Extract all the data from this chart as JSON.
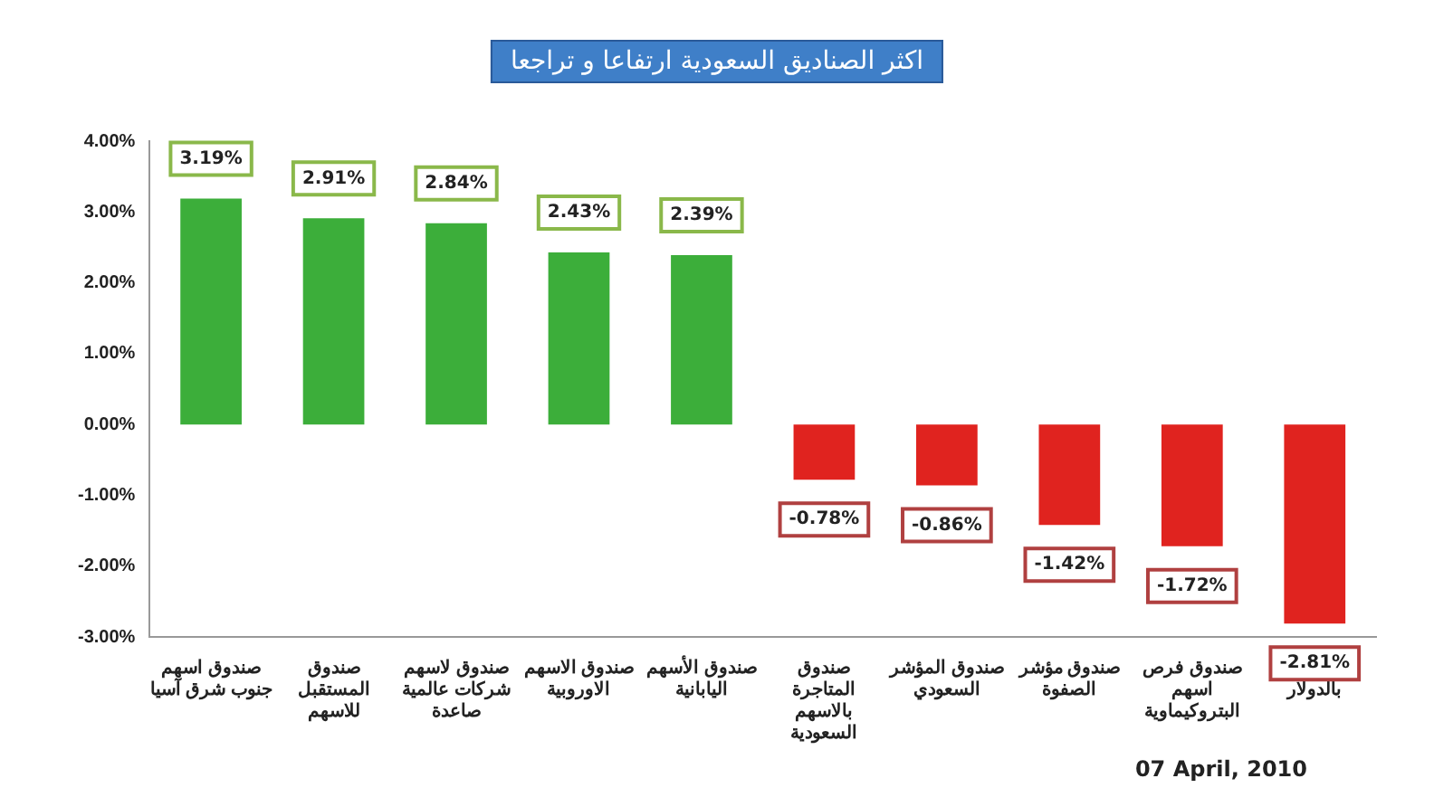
{
  "chart_data": {
    "type": "bar",
    "title": "اكثر الصناديق السعودية ارتفاعا و تراجعا",
    "categories": [
      "صندوق اسهم جنوب شرق آسيا",
      "صندوق المستقبل للاسهم",
      "صندوق لاسهم شركات عالمية صاعدة",
      "صندوق الاسهم الاوروبية",
      "صندوق الأسهم اليابانية",
      "صندوق المتاجرة بالاسهم السعودية",
      "صندوق المؤشر السعودي",
      "صندوق مؤشر الصفوة",
      "صندوق فرص اسهم البتروكيماوية",
      "للمتاجرة بالدولار"
    ],
    "values": [
      3.19,
      2.91,
      2.84,
      2.43,
      2.39,
      -0.78,
      -0.86,
      -1.42,
      -1.72,
      -2.81
    ],
    "colors": [
      "#3cae3a",
      "#3cae3a",
      "#3cae3a",
      "#3cae3a",
      "#3cae3a",
      "#e0231f",
      "#e0231f",
      "#e0231f",
      "#e0231f",
      "#e0231f"
    ],
    "value_labels": [
      "3.19%",
      "2.91%",
      "2.84%",
      "2.43%",
      "2.39%",
      "-0.78%",
      "-0.86%",
      "-1.42%",
      "-1.72%",
      "-2.81%"
    ],
    "ylim": [
      -3,
      4
    ],
    "yticks": [
      {
        "value": -3,
        "label": "-3.00%"
      },
      {
        "value": -2,
        "label": "-2.00%"
      },
      {
        "value": -1,
        "label": "-1.00%"
      },
      {
        "value": 0,
        "label": "0.00%"
      },
      {
        "value": 1,
        "label": "1.00%"
      },
      {
        "value": 2,
        "label": "2.00%"
      },
      {
        "value": 3,
        "label": "3.00%"
      },
      {
        "value": 4,
        "label": "4.00%"
      }
    ],
    "grid": false,
    "legend": false,
    "annotations": [
      "07 April, 2010"
    ]
  }
}
